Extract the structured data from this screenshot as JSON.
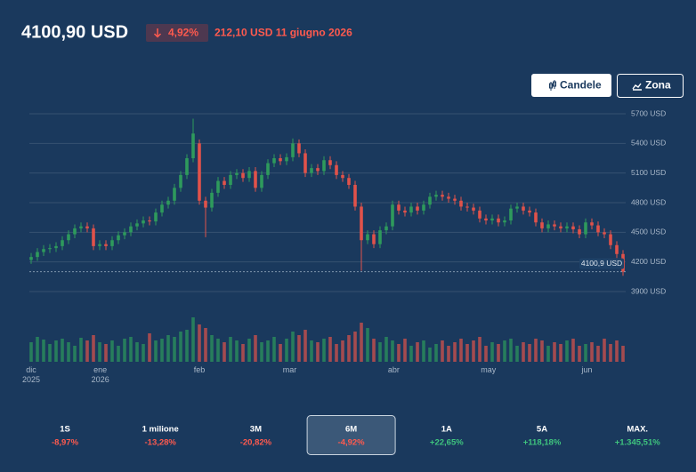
{
  "header": {
    "price": "4100,90 USD",
    "change_pct": "4,92%",
    "change_detail": "212,10 USD 11 giugno 2026"
  },
  "toolbar": {
    "buttons": [
      "Candele",
      "Zona"
    ]
  },
  "chart_data": {
    "type": "candlestick",
    "open": [
      4220,
      4250,
      4300,
      4330,
      4340,
      4360,
      4420,
      4480,
      4540,
      4560,
      4540,
      4360,
      4380,
      4360,
      4420,
      4470,
      4500,
      4560,
      4590,
      4620,
      4610,
      4700,
      4780,
      4820,
      4950,
      5080,
      5250,
      5400,
      4820,
      4750,
      4900,
      5020,
      4980,
      5080,
      5100,
      5050,
      5120,
      4950,
      5080,
      5200,
      5250,
      5220,
      5260,
      5400,
      5300,
      5100,
      5150,
      5120,
      5230,
      5180,
      5080,
      5050,
      4980,
      4760,
      4420,
      4480,
      4380,
      4520,
      4560,
      4780,
      4720,
      4700,
      4760,
      4720,
      4780,
      4860,
      4880,
      4860,
      4840,
      4820,
      4760,
      4750,
      4720,
      4640,
      4620,
      4640,
      4600,
      4620,
      4740,
      4760,
      4720,
      4700,
      4600,
      4540,
      4580,
      4560,
      4540,
      4560,
      4530,
      4480,
      4600,
      4570,
      4500,
      4480,
      4370,
      4280
    ],
    "high": [
      4290,
      4340,
      4370,
      4380,
      4400,
      4460,
      4520,
      4580,
      4600,
      4600,
      4580,
      4420,
      4420,
      4460,
      4510,
      4540,
      4600,
      4630,
      4660,
      4660,
      4740,
      4820,
      4860,
      4990,
      5120,
      5290,
      5650,
      5440,
      4860,
      4940,
      5060,
      5060,
      5120,
      5140,
      5140,
      5160,
      5160,
      5120,
      5240,
      5290,
      5290,
      5300,
      5450,
      5440,
      5340,
      5190,
      5190,
      5270,
      5270,
      5220,
      5120,
      5090,
      5020,
      4800,
      4520,
      4520,
      4560,
      4600,
      4820,
      4820,
      4760,
      4800,
      4800,
      4820,
      4900,
      4920,
      4920,
      4900,
      4880,
      4860,
      4800,
      4790,
      4760,
      4680,
      4680,
      4680,
      4660,
      4780,
      4800,
      4800,
      4760,
      4740,
      4640,
      4620,
      4620,
      4600,
      4600,
      4600,
      4570,
      4640,
      4640,
      4610,
      4540,
      4520,
      4410,
      4320
    ],
    "low": [
      4180,
      4210,
      4260,
      4290,
      4300,
      4320,
      4380,
      4440,
      4500,
      4500,
      4320,
      4320,
      4320,
      4320,
      4380,
      4430,
      4460,
      4520,
      4550,
      4570,
      4570,
      4660,
      4740,
      4780,
      4910,
      5040,
      5210,
      4780,
      4450,
      4710,
      4860,
      4940,
      4940,
      5040,
      5010,
      5010,
      4910,
      4910,
      5040,
      5160,
      5180,
      5180,
      5220,
      5260,
      5060,
      5060,
      5080,
      5080,
      5140,
      5040,
      5010,
      4940,
      4720,
      4110,
      4380,
      4340,
      4340,
      4480,
      4520,
      4680,
      4660,
      4660,
      4680,
      4680,
      4740,
      4820,
      4820,
      4800,
      4780,
      4720,
      4710,
      4680,
      4600,
      4580,
      4580,
      4560,
      4560,
      4580,
      4700,
      4680,
      4660,
      4560,
      4500,
      4500,
      4520,
      4500,
      4500,
      4490,
      4440,
      4440,
      4530,
      4460,
      4440,
      4330,
      4240,
      4060
    ],
    "close": [
      4250,
      4300,
      4330,
      4340,
      4360,
      4420,
      4480,
      4540,
      4560,
      4540,
      4360,
      4380,
      4360,
      4420,
      4470,
      4500,
      4560,
      4590,
      4620,
      4610,
      4700,
      4780,
      4820,
      4950,
      5080,
      5250,
      5500,
      4820,
      4750,
      4900,
      5020,
      4980,
      5080,
      5100,
      5050,
      5120,
      4950,
      5080,
      5200,
      5250,
      5220,
      5260,
      5400,
      5300,
      5100,
      5150,
      5120,
      5230,
      5180,
      5080,
      5050,
      4980,
      4760,
      4420,
      4480,
      4380,
      4520,
      4560,
      4780,
      4720,
      4700,
      4760,
      4720,
      4780,
      4860,
      4880,
      4860,
      4840,
      4820,
      4760,
      4750,
      4720,
      4640,
      4620,
      4640,
      4600,
      4620,
      4740,
      4760,
      4720,
      4700,
      4600,
      4540,
      4580,
      4560,
      4540,
      4560,
      4530,
      4480,
      4600,
      4570,
      4500,
      4480,
      4370,
      4280,
      4100.9
    ],
    "volume": [
      22,
      28,
      25,
      20,
      24,
      26,
      22,
      18,
      27,
      24,
      30,
      22,
      20,
      24,
      18,
      26,
      28,
      22,
      20,
      32,
      24,
      26,
      30,
      28,
      34,
      36,
      50,
      42,
      38,
      30,
      26,
      22,
      28,
      24,
      20,
      26,
      30,
      22,
      24,
      28,
      20,
      26,
      34,
      30,
      36,
      24,
      22,
      26,
      28,
      20,
      24,
      30,
      34,
      44,
      38,
      26,
      22,
      28,
      24,
      20,
      26,
      18,
      22,
      24,
      16,
      20,
      24,
      18,
      22,
      26,
      20,
      24,
      28,
      18,
      22,
      20,
      24,
      26,
      18,
      22,
      20,
      26,
      24,
      18,
      22,
      20,
      24,
      26,
      18,
      20,
      22,
      18,
      26,
      20,
      24,
      18
    ],
    "up_color": "#2e9a5c",
    "down_color": "#e0524a",
    "ylim": [
      3900,
      5700
    ],
    "yticks": [
      {
        "value": 3900,
        "label": "3900 USD"
      },
      {
        "value": 4200,
        "label": "4200 USD"
      },
      {
        "value": 4500,
        "label": "4500 USD"
      },
      {
        "value": 4800,
        "label": "4800 USD"
      },
      {
        "value": 5100,
        "label": "5100 USD"
      },
      {
        "value": 5400,
        "label": "5400 USD"
      },
      {
        "value": 5700,
        "label": "5700 USD"
      }
    ],
    "xlim": [
      0,
      95
    ],
    "xticks": [
      {
        "value": 0,
        "label": "dic 2025"
      },
      {
        "value": 11.1,
        "label": "ene 2026"
      },
      {
        "value": 27,
        "label": "feb"
      },
      {
        "value": 41.5,
        "label": "mar"
      },
      {
        "value": 58.2,
        "label": "abr"
      },
      {
        "value": 73.4,
        "label": "may"
      },
      {
        "value": 89.2,
        "label": "jun"
      }
    ],
    "last_price": {
      "value": 4100.9,
      "label": "4100,9 USD"
    },
    "grid": true
  },
  "periods": [
    {
      "label": "1S",
      "change": "-8,97%"
    },
    {
      "label": "1 milione",
      "change": "-13,28%"
    },
    {
      "label": "3M",
      "change": "-20,82%"
    },
    {
      "label": "6M",
      "change": "-4,92%"
    },
    {
      "label": "1A",
      "change": "+22,65%"
    },
    {
      "label": "5A",
      "change": "+118,18%"
    },
    {
      "label": "MAX.",
      "change": "+1.345,51%"
    }
  ],
  "selected_period": 3
}
